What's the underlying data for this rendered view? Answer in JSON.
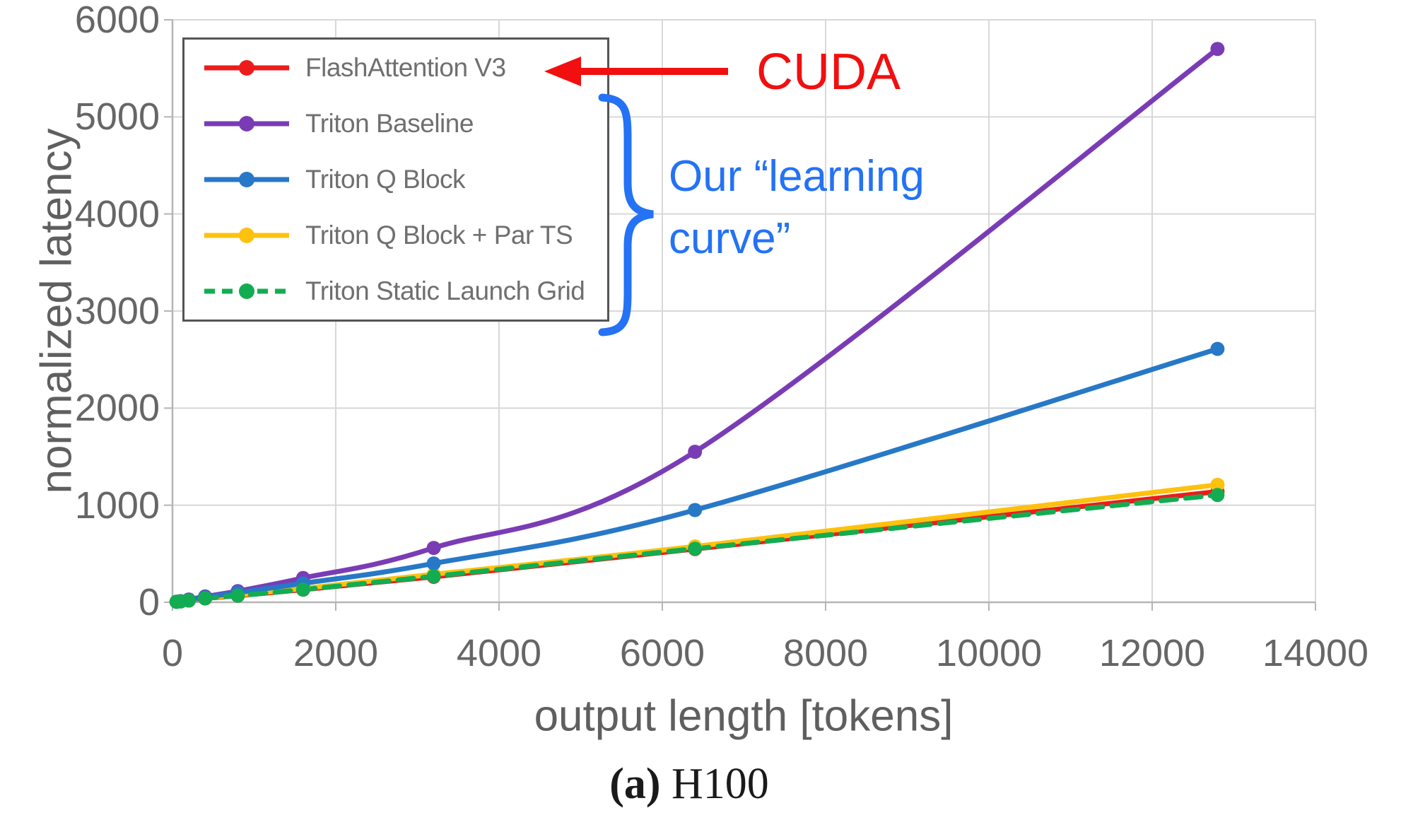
{
  "figure": {
    "caption": {
      "label": "(a)",
      "text": "H100"
    }
  },
  "annotations": {
    "cuda": {
      "text": "CUDA",
      "color": "#f10f0f"
    },
    "learning_curve": {
      "text": "Our “learning\ncurve”",
      "color": "#2472f5"
    },
    "arrow_color": "#f10f0f",
    "brace_color": "#2472f5"
  },
  "chart_data": {
    "type": "line",
    "title": "",
    "xlabel": "output length [tokens]",
    "ylabel": "normalized latency",
    "xlim": [
      0,
      14000
    ],
    "ylim": [
      0,
      6000
    ],
    "x_ticks": [
      0,
      2000,
      4000,
      6000,
      8000,
      10000,
      12000,
      14000
    ],
    "y_ticks": [
      0,
      1000,
      2000,
      3000,
      4000,
      5000,
      6000
    ],
    "grid": true,
    "legend_position": "top-left",
    "x": [
      50,
      100,
      200,
      400,
      800,
      1600,
      3200,
      6400,
      12800
    ],
    "series": [
      {
        "name": "FlashAttention V3",
        "color": "#ee1b1b",
        "style": "solid",
        "values": [
          5,
          9,
          18,
          40,
          68,
          130,
          262,
          548,
          1140
        ]
      },
      {
        "name": "Triton Baseline",
        "color": "#7a3cb5",
        "style": "solid",
        "values": [
          6,
          12,
          28,
          60,
          115,
          250,
          560,
          1550,
          5700
        ]
      },
      {
        "name": "Triton Q Block",
        "color": "#2778c7",
        "style": "solid",
        "values": [
          5,
          10,
          24,
          52,
          100,
          195,
          400,
          950,
          2610
        ]
      },
      {
        "name": "Triton Q Block + Par TS",
        "color": "#fec10d",
        "style": "solid",
        "values": [
          5,
          10,
          20,
          45,
          74,
          142,
          288,
          575,
          1210
        ]
      },
      {
        "name": "Triton Static Launch Grid",
        "color": "#12ad52",
        "style": "dashed",
        "values": [
          5,
          9,
          18,
          40,
          68,
          131,
          268,
          552,
          1105
        ]
      }
    ],
    "draw_order": [
      0,
      3,
      1,
      2,
      4
    ],
    "grid_color": "#d8d8d8",
    "axis_color": "#b5b5b5",
    "tick_text_color": "#666666"
  }
}
